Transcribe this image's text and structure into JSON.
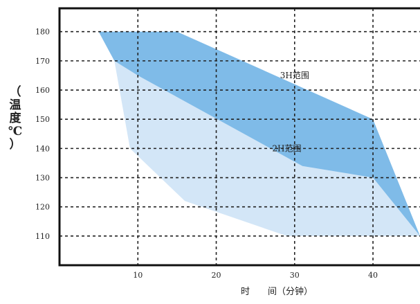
{
  "chart_data": {
    "type": "area",
    "title": "",
    "xlabel": "时　　间（分钟）",
    "ylabel_chars": [
      "（",
      "温",
      "度",
      "℃",
      "）"
    ],
    "xlim": [
      0,
      46
    ],
    "ylim": [
      100,
      188
    ],
    "x_ticks": [
      10,
      20,
      30,
      40
    ],
    "y_ticks": [
      110,
      120,
      130,
      140,
      150,
      160,
      170,
      180
    ],
    "grid": true,
    "grid_style": "dashed",
    "series": [
      {
        "name": "2H范围",
        "color": "#d3e6f7",
        "label_at": [
          29,
          140
        ],
        "polygon": [
          [
            5,
            180
          ],
          [
            15,
            180
          ],
          [
            10,
            170
          ],
          [
            40,
            150
          ],
          [
            40,
            130
          ],
          [
            46,
            110
          ],
          [
            29,
            110
          ],
          [
            16,
            122
          ],
          [
            9,
            140
          ],
          [
            7,
            170
          ]
        ]
      },
      {
        "name": "3H范围",
        "color": "#7fbbe8",
        "label_at": [
          30,
          165
        ],
        "polygon": [
          [
            5,
            180
          ],
          [
            15,
            180
          ],
          [
            40,
            150
          ],
          [
            46,
            110
          ],
          [
            40,
            130
          ],
          [
            31,
            134
          ],
          [
            10,
            165
          ],
          [
            7,
            170
          ]
        ]
      }
    ]
  }
}
